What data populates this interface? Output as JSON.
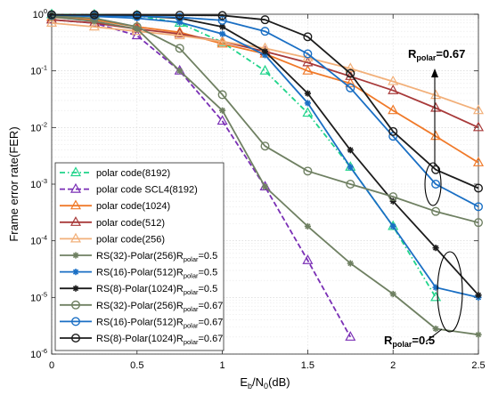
{
  "chart_data": {
    "type": "line",
    "xlabel": "E",
    "xlabel_sub1": "b",
    "xlabel_mid": "/N",
    "xlabel_sub2": "0",
    "xlabel_tail": "(dB)",
    "ylabel": "Frame error rate(FER)",
    "xlim": [
      0,
      2.5
    ],
    "ylim_log10": [
      -6,
      0
    ],
    "yscale": "log",
    "grid": true,
    "legend_position": "bottom-left",
    "x_ticks": [
      {
        "v": 0,
        "label": "0"
      },
      {
        "v": 0.5,
        "label": "0.5"
      },
      {
        "v": 1,
        "label": "1"
      },
      {
        "v": 1.5,
        "label": "1.5"
      },
      {
        "v": 2,
        "label": "2"
      },
      {
        "v": 2.5,
        "label": "2.5"
      }
    ],
    "y_ticks": [
      {
        "e": 0,
        "base": "10",
        "exp": "0"
      },
      {
        "e": -1,
        "base": "10",
        "exp": "-1"
      },
      {
        "e": -2,
        "base": "10",
        "exp": "-2"
      },
      {
        "e": -3,
        "base": "10",
        "exp": "-3"
      },
      {
        "e": -4,
        "base": "10",
        "exp": "-4"
      },
      {
        "e": -5,
        "base": "10",
        "exp": "-5"
      },
      {
        "e": -6,
        "base": "10",
        "exp": "-6"
      }
    ],
    "annotations": [
      {
        "id": "ann-067",
        "text": "R",
        "sub": "polar",
        "tail": "=0.67"
      },
      {
        "id": "ann-05",
        "text": "R",
        "sub": "polar",
        "tail": "=0.5"
      }
    ],
    "series": [
      {
        "name": "polar code(8192)",
        "color": "#1fd48a",
        "dash": "dashdot",
        "marker": "triangle",
        "x": [
          0,
          0.25,
          0.5,
          0.75,
          1,
          1.25,
          1.5,
          1.75,
          2,
          2.25
        ],
        "y": [
          0.99,
          0.98,
          0.95,
          0.7,
          0.32,
          0.1,
          0.018,
          0.002,
          0.00018,
          1e-05
        ]
      },
      {
        "name": "polar code SCL4(8192)",
        "color": "#7a2fb5",
        "dash": "dash",
        "marker": "triangle",
        "x": [
          0,
          0.25,
          0.5,
          0.75,
          1,
          1.25,
          1.5,
          1.75
        ],
        "y": [
          0.8,
          0.7,
          0.42,
          0.1,
          0.013,
          0.0009,
          4.5e-05,
          2e-06
        ]
      },
      {
        "name": "polar code(1024)",
        "color": "#f07a2a",
        "dash": "solid",
        "marker": "triangle",
        "x": [
          0,
          0.25,
          0.5,
          0.75,
          1,
          1.25,
          1.5,
          1.75,
          2,
          2.25,
          2.5
        ],
        "y": [
          0.88,
          0.8,
          0.6,
          0.48,
          0.3,
          0.2,
          0.1,
          0.06,
          0.02,
          0.007,
          0.0024
        ]
      },
      {
        "name": "polar code(512)",
        "color": "#a83a3a",
        "dash": "solid",
        "marker": "triangle",
        "x": [
          0,
          0.25,
          0.5,
          0.75,
          1,
          1.25,
          1.5,
          1.75,
          2,
          2.25,
          2.5
        ],
        "y": [
          0.8,
          0.7,
          0.55,
          0.45,
          0.33,
          0.22,
          0.14,
          0.08,
          0.045,
          0.022,
          0.01
        ]
      },
      {
        "name": "polar code(256)",
        "color": "#f2b07a",
        "dash": "solid",
        "marker": "triangle",
        "x": [
          0,
          0.25,
          0.5,
          0.75,
          1,
          1.25,
          1.5,
          1.75,
          2,
          2.25,
          2.5
        ],
        "y": [
          0.7,
          0.6,
          0.5,
          0.42,
          0.33,
          0.25,
          0.17,
          0.11,
          0.065,
          0.037,
          0.02
        ]
      },
      {
        "name": "RS(32)-Polar(256)R",
        "sub": "polar",
        "tail": "=0.5",
        "color": "#6f8062",
        "dash": "solid",
        "marker": "star",
        "x": [
          0,
          0.25,
          0.5,
          0.75,
          1,
          1.25,
          1.5,
          1.75,
          2,
          2.25,
          2.5
        ],
        "y": [
          0.9,
          0.75,
          0.55,
          0.1,
          0.02,
          0.0009,
          0.00018,
          4e-05,
          1.15e-05,
          2.8e-06,
          2.2e-06
        ]
      },
      {
        "name": "RS(16)-Polar(512)R",
        "sub": "polar",
        "tail": "=0.5",
        "color": "#1a6fc4",
        "dash": "solid",
        "marker": "star",
        "x": [
          0,
          0.25,
          0.5,
          0.75,
          1,
          1.25,
          1.5,
          1.75,
          2,
          2.25,
          2.5
        ],
        "y": [
          0.95,
          0.92,
          0.85,
          0.72,
          0.45,
          0.19,
          0.027,
          0.002,
          0.00018,
          1.5e-05,
          1e-05
        ]
      },
      {
        "name": "RS(8)-Polar(1024)R",
        "sub": "polar",
        "tail": "=0.5",
        "color": "#1c1c1c",
        "dash": "solid",
        "marker": "star",
        "x": [
          0,
          0.25,
          0.5,
          0.75,
          1,
          1.25,
          1.5,
          1.75,
          2,
          2.25,
          2.5
        ],
        "y": [
          0.98,
          0.96,
          0.93,
          0.85,
          0.6,
          0.22,
          0.04,
          0.004,
          0.0005,
          7.5e-05,
          1.1e-05
        ]
      },
      {
        "name": "RS(32)-Polar(256)R",
        "sub": "polar",
        "tail": "=0.67",
        "color": "#6f8062",
        "dash": "solid",
        "marker": "circle",
        "x": [
          0,
          0.25,
          0.5,
          0.75,
          1,
          1.25,
          1.5,
          1.75,
          2,
          2.25,
          2.5
        ],
        "y": [
          0.93,
          0.85,
          0.6,
          0.25,
          0.038,
          0.0047,
          0.0017,
          0.001,
          0.0006,
          0.00033,
          0.00021
        ]
      },
      {
        "name": "RS(16)-Polar(512)R",
        "sub": "polar",
        "tail": "=0.67",
        "color": "#1a6fc4",
        "dash": "solid",
        "marker": "circle",
        "x": [
          0,
          0.25,
          0.5,
          0.75,
          1,
          1.25,
          1.5,
          1.75,
          2,
          2.25,
          2.5
        ],
        "y": [
          0.97,
          0.95,
          0.92,
          0.88,
          0.78,
          0.5,
          0.2,
          0.05,
          0.007,
          0.001,
          0.0004
        ]
      },
      {
        "name": "RS(8)-Polar(1024)R",
        "sub": "polar",
        "tail": "=0.67",
        "color": "#1c1c1c",
        "dash": "solid",
        "marker": "circle",
        "x": [
          0,
          0.25,
          0.5,
          0.75,
          1,
          1.25,
          1.5,
          1.75,
          2,
          2.25,
          2.5
        ],
        "y": [
          0.98,
          0.98,
          0.97,
          0.96,
          0.95,
          0.8,
          0.4,
          0.09,
          0.0085,
          0.0018,
          0.00085
        ]
      }
    ]
  }
}
